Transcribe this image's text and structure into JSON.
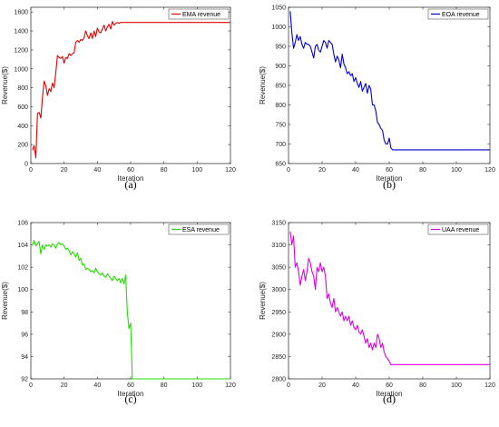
{
  "chart_data": [
    {
      "type": "line",
      "caption": "(a)",
      "xlabel": "Iteration",
      "ylabel": "Revenue($)",
      "xlim": [
        0,
        120
      ],
      "ylim": [
        0,
        1650
      ],
      "xticks": [
        0,
        20,
        40,
        60,
        80,
        100,
        120
      ],
      "yticks": [
        0,
        200,
        400,
        600,
        800,
        1000,
        1200,
        1400,
        1600
      ],
      "legend_position": "top-right",
      "series": [
        {
          "name": "EMA revenue",
          "color": "#e00000",
          "x": [
            1,
            2,
            3,
            4,
            5,
            6,
            7,
            8,
            9,
            10,
            11,
            12,
            13,
            14,
            15,
            16,
            17,
            18,
            19,
            20,
            21,
            22,
            23,
            24,
            25,
            26,
            27,
            28,
            29,
            30,
            31,
            32,
            33,
            34,
            35,
            36,
            37,
            38,
            39,
            40,
            41,
            42,
            43,
            44,
            45,
            46,
            47,
            48,
            49,
            50,
            51,
            52,
            53,
            54,
            55,
            56,
            57,
            58,
            59,
            60,
            120
          ],
          "y": [
            140,
            190,
            60,
            530,
            540,
            480,
            700,
            870,
            820,
            720,
            790,
            760,
            850,
            800,
            960,
            1140,
            1120,
            1110,
            1130,
            1060,
            1120,
            1110,
            1160,
            1140,
            1160,
            1170,
            1280,
            1300,
            1280,
            1310,
            1300,
            1330,
            1400,
            1350,
            1320,
            1380,
            1320,
            1400,
            1340,
            1430,
            1390,
            1380,
            1420,
            1460,
            1400,
            1440,
            1470,
            1420,
            1500,
            1460,
            1480,
            1490,
            1480,
            1490,
            1490,
            1490,
            1490,
            1490,
            1490,
            1490,
            1490
          ]
        }
      ]
    },
    {
      "type": "line",
      "caption": "(b)",
      "xlabel": "Iteration",
      "ylabel": "Revenue($)",
      "xlim": [
        0,
        120
      ],
      "ylim": [
        650,
        1050
      ],
      "xticks": [
        0,
        20,
        40,
        60,
        80,
        100,
        120
      ],
      "yticks": [
        650,
        700,
        750,
        800,
        850,
        900,
        950,
        1000,
        1050
      ],
      "legend_position": "top-right",
      "series": [
        {
          "name": "EOA revenue",
          "color": "#0000cc",
          "x": [
            1,
            2,
            3,
            4,
            5,
            6,
            7,
            8,
            9,
            10,
            11,
            12,
            13,
            14,
            15,
            16,
            17,
            18,
            19,
            20,
            21,
            22,
            23,
            24,
            25,
            26,
            27,
            28,
            29,
            30,
            31,
            32,
            33,
            34,
            35,
            36,
            37,
            38,
            39,
            40,
            41,
            42,
            43,
            44,
            45,
            46,
            47,
            48,
            49,
            50,
            51,
            52,
            53,
            54,
            55,
            56,
            57,
            58,
            59,
            60,
            61,
            62,
            120
          ],
          "y": [
            1040,
            985,
            945,
            960,
            980,
            965,
            975,
            955,
            945,
            960,
            955,
            955,
            950,
            935,
            920,
            950,
            955,
            940,
            935,
            950,
            965,
            960,
            945,
            965,
            960,
            955,
            930,
            910,
            925,
            915,
            895,
            930,
            905,
            895,
            880,
            885,
            875,
            880,
            860,
            870,
            855,
            845,
            860,
            835,
            845,
            855,
            830,
            850,
            840,
            800,
            800,
            785,
            755,
            750,
            740,
            735,
            710,
            700,
            700,
            715,
            690,
            685,
            685
          ]
        }
      ]
    },
    {
      "type": "line",
      "caption": "(c)",
      "xlabel": "Iteration",
      "ylabel": "Revenue($)",
      "xlim": [
        0,
        120
      ],
      "ylim": [
        92,
        106
      ],
      "xticks": [
        0,
        20,
        40,
        60,
        80,
        100,
        120
      ],
      "yticks": [
        92,
        94,
        96,
        98,
        100,
        102,
        104,
        106
      ],
      "legend_position": "top-right",
      "series": [
        {
          "name": "ESA revenue",
          "color": "#22dd00",
          "x": [
            1,
            2,
            3,
            4,
            5,
            6,
            7,
            8,
            9,
            10,
            11,
            12,
            13,
            14,
            15,
            16,
            17,
            18,
            19,
            20,
            21,
            22,
            23,
            24,
            25,
            26,
            27,
            28,
            29,
            30,
            31,
            32,
            33,
            34,
            35,
            36,
            37,
            38,
            39,
            40,
            41,
            42,
            43,
            44,
            45,
            46,
            47,
            48,
            49,
            50,
            51,
            52,
            53,
            54,
            55,
            56,
            57,
            58,
            59,
            60,
            61,
            120
          ],
          "y": [
            104.0,
            104.4,
            103.9,
            104.1,
            104.3,
            103.2,
            104.0,
            103.6,
            104.0,
            103.9,
            104.0,
            103.8,
            104.1,
            104.0,
            103.7,
            104.1,
            104.2,
            104.0,
            104.1,
            103.9,
            103.6,
            103.7,
            103.5,
            103.1,
            103.4,
            103.2,
            102.9,
            103.3,
            102.6,
            102.8,
            102.2,
            102.3,
            101.8,
            101.9,
            101.8,
            101.6,
            101.7,
            101.5,
            101.9,
            101.6,
            101.4,
            101.3,
            101.5,
            101.2,
            101.1,
            101.4,
            101.2,
            101.0,
            100.8,
            101.2,
            101.0,
            100.8,
            101.0,
            100.6,
            101.0,
            100.5,
            101.3,
            98.0,
            96.5,
            97.0,
            92.0,
            92.0
          ]
        }
      ]
    },
    {
      "type": "line",
      "caption": "(d)",
      "xlabel": "Iteration",
      "ylabel": "Revenue($)",
      "xlim": [
        0,
        120
      ],
      "ylim": [
        2800,
        3150
      ],
      "xticks": [
        0,
        20,
        40,
        60,
        80,
        100,
        120
      ],
      "yticks": [
        2800,
        2850,
        2900,
        2950,
        3000,
        3050,
        3100,
        3150
      ],
      "legend_position": "top-right",
      "series": [
        {
          "name": "UAA revenue",
          "color": "#dd00dd",
          "x": [
            1,
            2,
            3,
            4,
            5,
            6,
            7,
            8,
            9,
            10,
            11,
            12,
            13,
            14,
            15,
            16,
            17,
            18,
            19,
            20,
            21,
            22,
            23,
            24,
            25,
            26,
            27,
            28,
            29,
            30,
            31,
            32,
            33,
            34,
            35,
            36,
            37,
            38,
            39,
            40,
            41,
            42,
            43,
            44,
            45,
            46,
            47,
            48,
            49,
            50,
            51,
            52,
            53,
            54,
            55,
            56,
            57,
            58,
            59,
            60,
            61,
            120
          ],
          "y": [
            3130,
            3100,
            3120,
            3050,
            3060,
            3040,
            3010,
            3030,
            3045,
            3020,
            3040,
            3070,
            3060,
            3040,
            3030,
            3000,
            3050,
            3040,
            3060,
            3040,
            3050,
            3030,
            2980,
            2990,
            2970,
            2960,
            2980,
            2950,
            2960,
            2950,
            2940,
            2950,
            2930,
            2940,
            2930,
            2940,
            2920,
            2930,
            2915,
            2910,
            2920,
            2905,
            2900,
            2910,
            2895,
            2880,
            2890,
            2870,
            2880,
            2865,
            2880,
            2870,
            2900,
            2890,
            2870,
            2880,
            2860,
            2850,
            2845,
            2840,
            2832,
            2832
          ]
        }
      ]
    }
  ]
}
